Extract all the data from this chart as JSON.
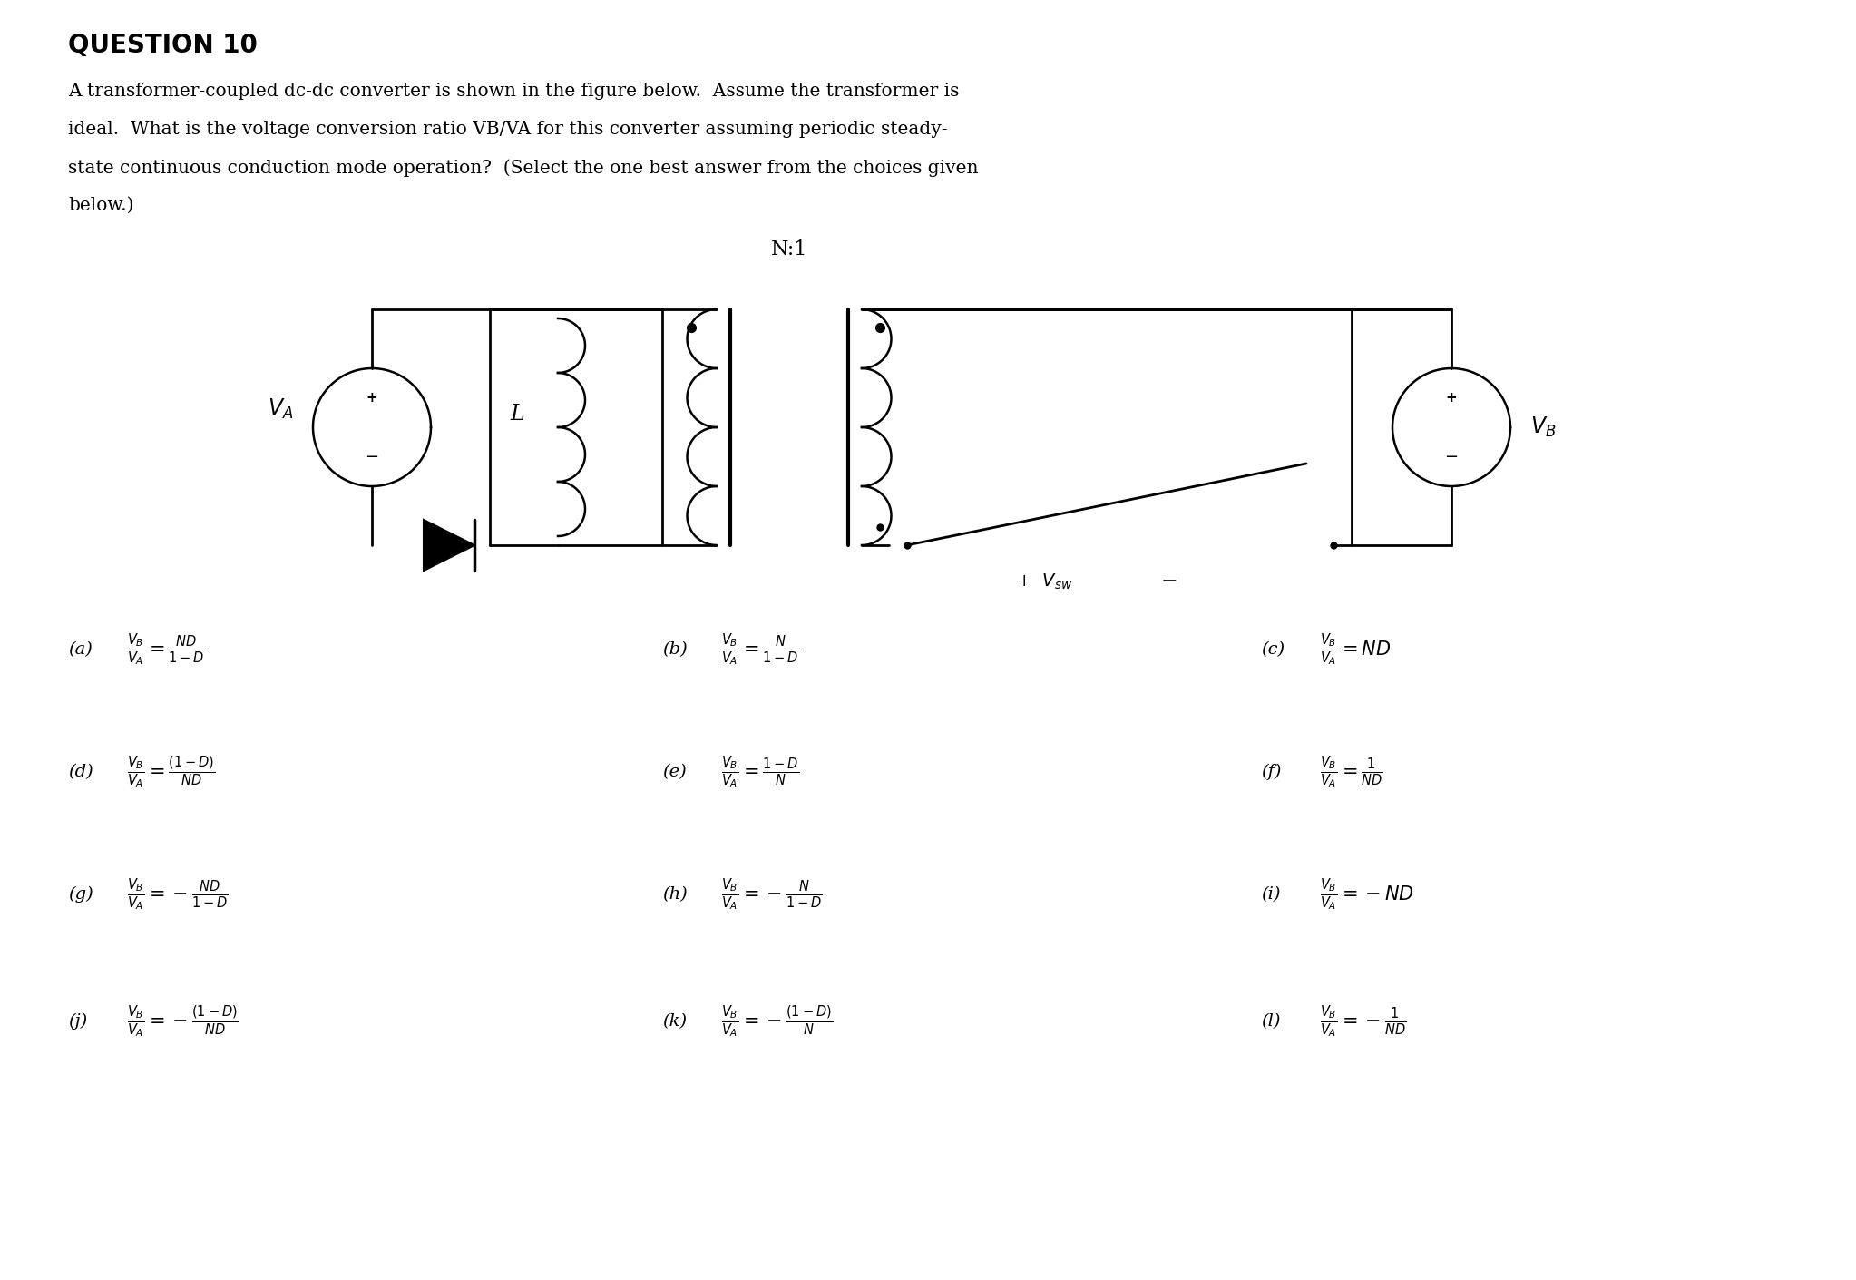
{
  "title": "QUESTION 10",
  "bg_color": "#ffffff",
  "text_color": "#000000",
  "question_lines": [
    "A transformer-coupled dc-dc converter is shown in the figure below.  Assume the transformer is",
    "ideal.  What is the voltage conversion ratio VB/VA for this converter assuming periodic steady-",
    "state continuous conduction mode operation?  (Select the one best answer from the choices given",
    "below.)"
  ],
  "formulas": [
    [
      "(a)",
      "$\\frac{V_B}{V_A} = \\frac{ND}{1-D}$"
    ],
    [
      "(b)",
      "$\\frac{V_B}{V_A} = \\frac{N}{1-D}$"
    ],
    [
      "(c)",
      "$\\frac{V_B}{V_A} = ND$"
    ],
    [
      "(d)",
      "$\\frac{V_B}{V_A} = \\frac{(1-D)}{ND}$"
    ],
    [
      "(e)",
      "$\\frac{V_B}{V_A} = \\frac{1-D}{N}$"
    ],
    [
      "(f)",
      "$\\frac{V_B}{V_A} = \\frac{1}{ND}$"
    ],
    [
      "(g)",
      "$\\frac{V_B}{V_A} = -\\frac{ND}{1-D}$"
    ],
    [
      "(h)",
      "$\\frac{V_B}{V_A} = -\\frac{N}{1-D}$"
    ],
    [
      "(i)",
      "$\\frac{V_B}{V_A} = -ND$"
    ],
    [
      "(j)",
      "$\\frac{V_B}{V_A} = -\\frac{(1-D)}{ND}$"
    ],
    [
      "(k)",
      "$\\frac{V_B}{V_A} = -\\frac{(1-D)}{N}$"
    ],
    [
      "(l)",
      "$\\frac{V_B}{V_A} = -\\frac{1}{ND}$"
    ]
  ]
}
